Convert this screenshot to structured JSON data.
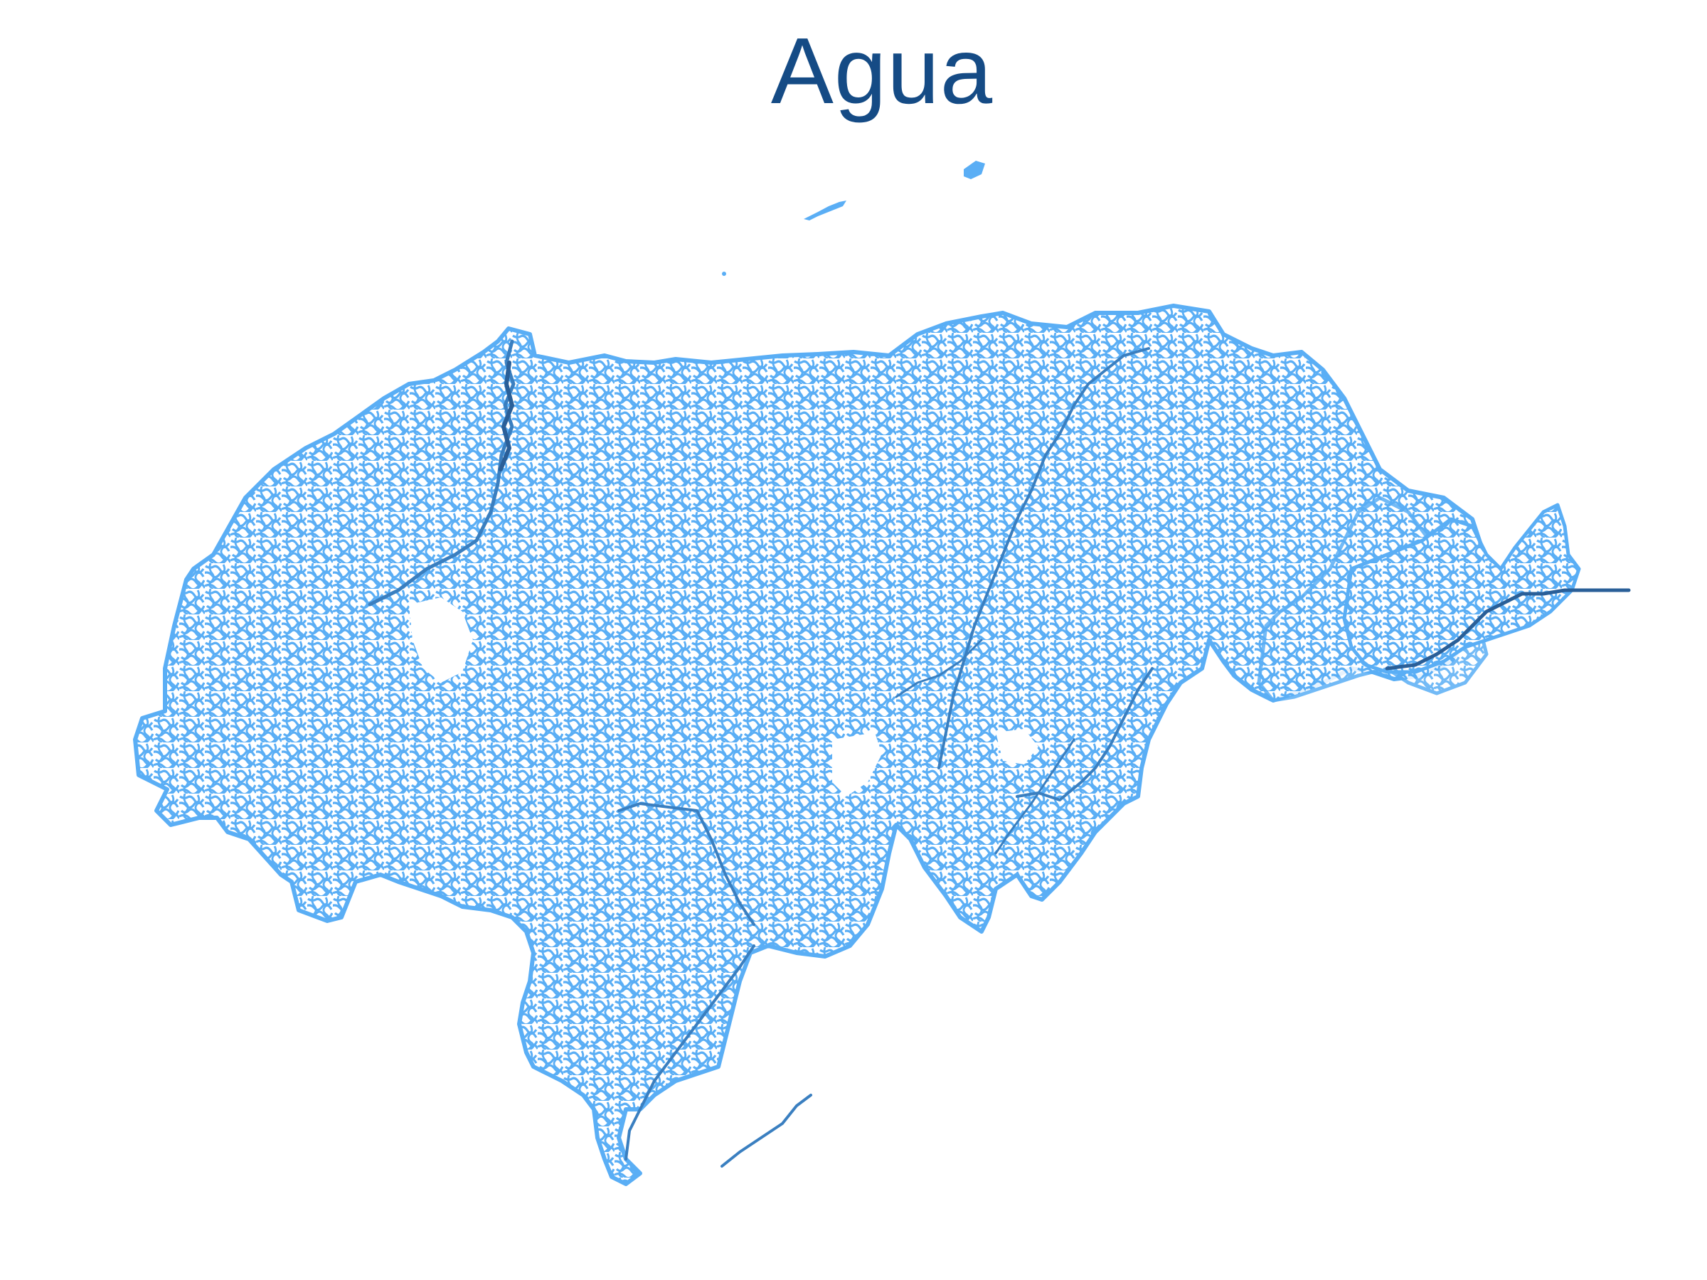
{
  "title": "Agua",
  "colors": {
    "background": "#ffffff",
    "title": "#154b85",
    "stream": "#5aaef5",
    "main_river": "#3a7fc0",
    "main_river_dark": "#2a5f98"
  },
  "map": {
    "layer": "water-network",
    "glyphs": {
      "stream_fill": "dense-stream-texture"
    }
  }
}
